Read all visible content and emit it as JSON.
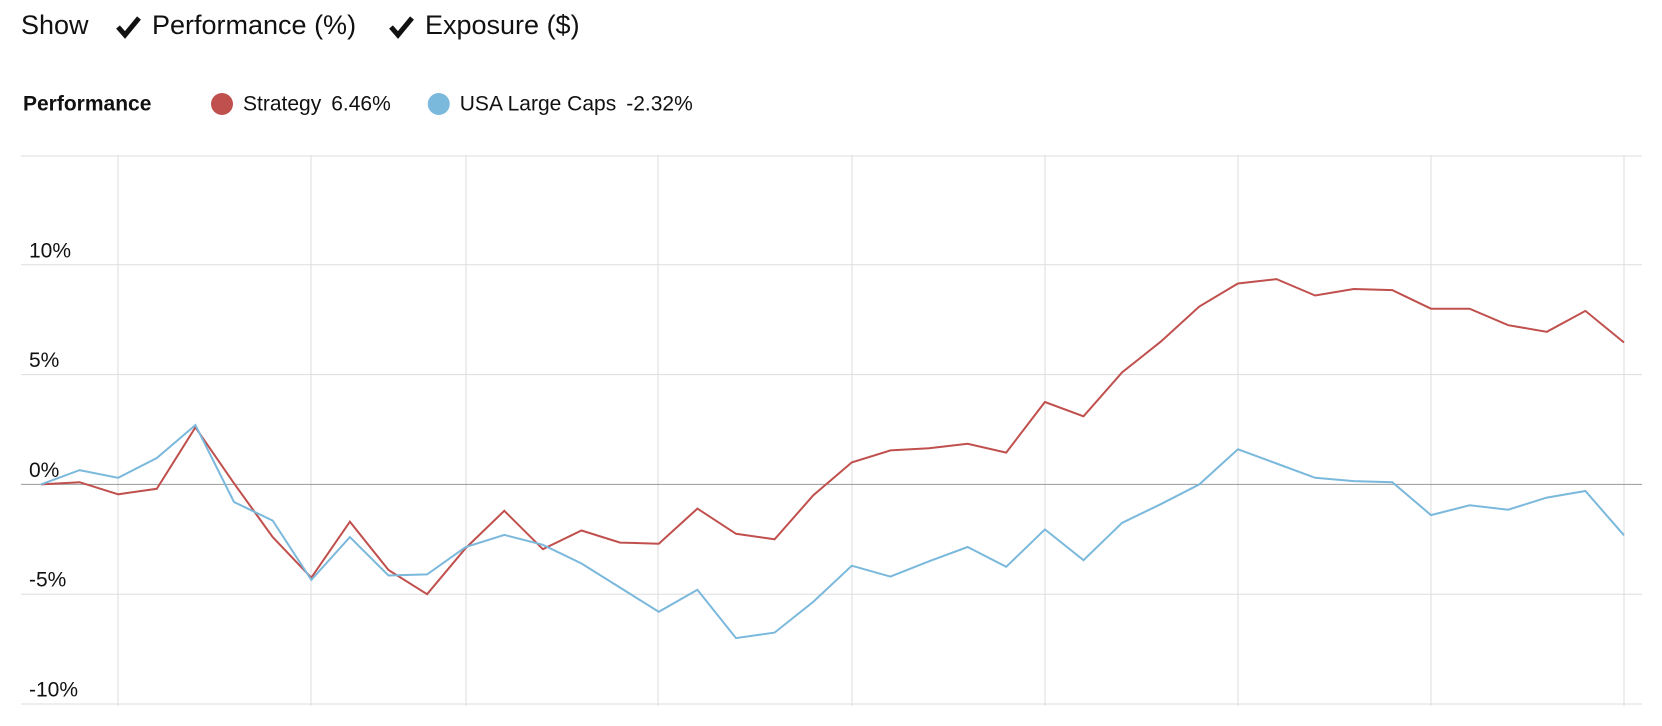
{
  "controls": {
    "show": "Show",
    "options": [
      "Performance (%)",
      "Exposure ($)"
    ]
  },
  "chart_data": {
    "type": "line",
    "legend_title": "Performance",
    "series": [
      {
        "name": "Strategy",
        "color": "#c0504d",
        "last_value_label": "6.46%",
        "values": [
          0,
          0.1,
          -0.45,
          -0.2,
          2.6,
          0.05,
          -2.4,
          -4.25,
          -1.7,
          -3.9,
          -5.0,
          -2.9,
          -1.2,
          -2.95,
          -2.1,
          -2.65,
          -2.7,
          -1.1,
          -2.25,
          -2.5,
          -0.5,
          1.0,
          1.55,
          1.65,
          1.85,
          1.45,
          3.75,
          3.1,
          5.1,
          6.5,
          8.1,
          9.15,
          9.35,
          8.6,
          8.9,
          8.85,
          8.0,
          8.0,
          7.25,
          6.95,
          7.9,
          6.46
        ]
      },
      {
        "name": "USA Large Caps",
        "color": "#7ab8dc",
        "last_value_label": "-2.32%",
        "values": [
          0,
          0.65,
          0.3,
          1.2,
          2.7,
          -0.8,
          -1.65,
          -4.35,
          -2.4,
          -4.15,
          -4.1,
          -2.85,
          -2.3,
          -2.75,
          -3.6,
          -4.7,
          -5.8,
          -4.8,
          -7.0,
          -6.75,
          -5.35,
          -3.7,
          -4.2,
          -3.5,
          -2.85,
          -3.75,
          -2.05,
          -3.45,
          -1.75,
          -0.9,
          0,
          1.6,
          0.95,
          0.3,
          0.15,
          0.1,
          -1.4,
          -0.95,
          -1.15,
          -0.6,
          -0.3,
          -2.32
        ]
      }
    ],
    "ylim": [
      -10,
      15
    ],
    "yticks": [
      {
        "value": -10,
        "label": "-10%"
      },
      {
        "value": -5,
        "label": "-5%"
      },
      {
        "value": 0,
        "label": "0%"
      },
      {
        "value": 5,
        "label": "5%"
      },
      {
        "value": 10,
        "label": "10%"
      }
    ],
    "grid": true
  }
}
